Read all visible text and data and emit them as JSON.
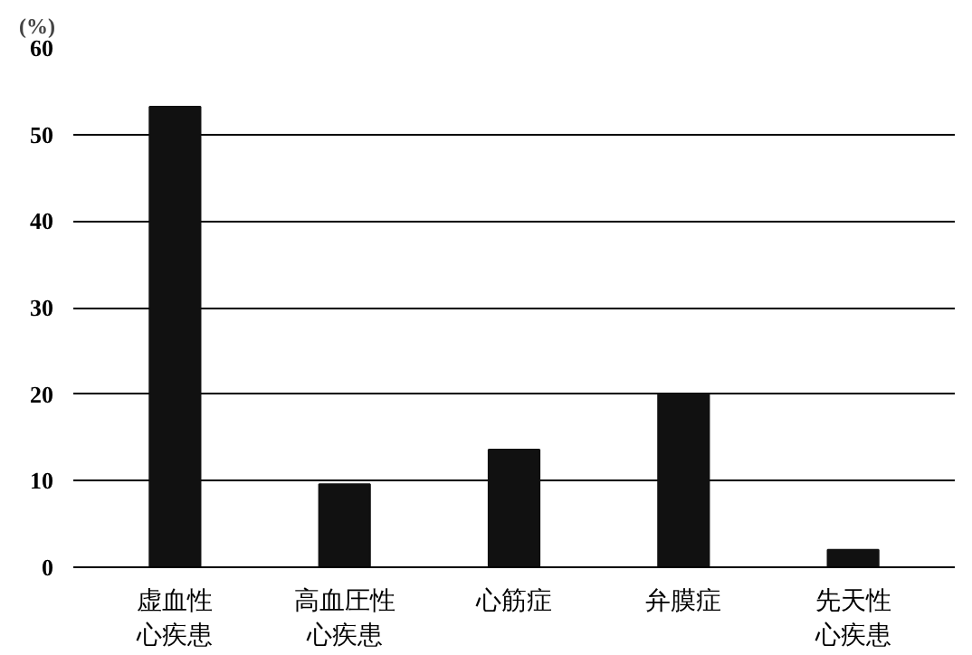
{
  "chart_data": {
    "type": "bar",
    "ylabel": "(%)",
    "categories": [
      "虚血性心疾患",
      "高血圧性心疾患",
      "心筋症",
      "弁膜症",
      "先天性心疾患"
    ],
    "values": [
      53.2,
      9.6,
      13.6,
      20,
      2
    ],
    "color": "#111111",
    "ylim": [
      0,
      60
    ],
    "yticks": [
      0,
      10,
      20,
      30,
      40,
      50,
      60
    ],
    "grid": "y"
  }
}
